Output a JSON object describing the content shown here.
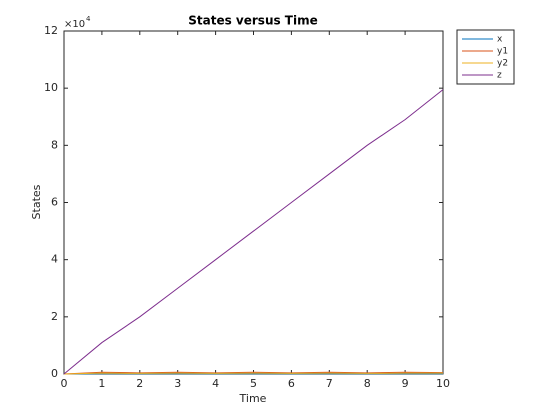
{
  "chart_data": {
    "type": "line",
    "title": "States versus Time",
    "x_label": "Time",
    "y_label": "States",
    "y_multiplier": {
      "base": "×10",
      "exponent": "4"
    },
    "x": [
      0,
      1,
      2,
      3,
      4,
      5,
      6,
      7,
      8,
      9,
      10
    ],
    "series": [
      {
        "name": "x",
        "color": "#0072bd",
        "values": [
          0,
          0.01,
          0.01,
          0.01,
          0.01,
          0.01,
          0.01,
          0.01,
          0.01,
          0.01,
          0.01
        ]
      },
      {
        "name": "y1",
        "color": "#d95319",
        "values": [
          0,
          0.06,
          0.04,
          0.06,
          0.04,
          0.06,
          0.04,
          0.06,
          0.04,
          0.06,
          0.05
        ]
      },
      {
        "name": "y2",
        "color": "#edb120",
        "values": [
          0,
          0.03,
          0.02,
          0.03,
          0.02,
          0.03,
          0.02,
          0.03,
          0.02,
          0.03,
          0.03
        ]
      },
      {
        "name": "z",
        "color": "#7e2f8e",
        "values": [
          0,
          1.1,
          2.0,
          3.0,
          4.0,
          5.0,
          6.0,
          7.0,
          8.0,
          8.9,
          9.95
        ]
      }
    ],
    "xlim": [
      0,
      10
    ],
    "xticks": [
      0,
      1,
      2,
      3,
      4,
      5,
      6,
      7,
      8,
      9,
      10
    ],
    "ylim": [
      0,
      12
    ],
    "yticks": [
      0,
      2,
      4,
      6,
      8,
      10,
      12
    ],
    "legend": "top-right",
    "grid": false
  }
}
